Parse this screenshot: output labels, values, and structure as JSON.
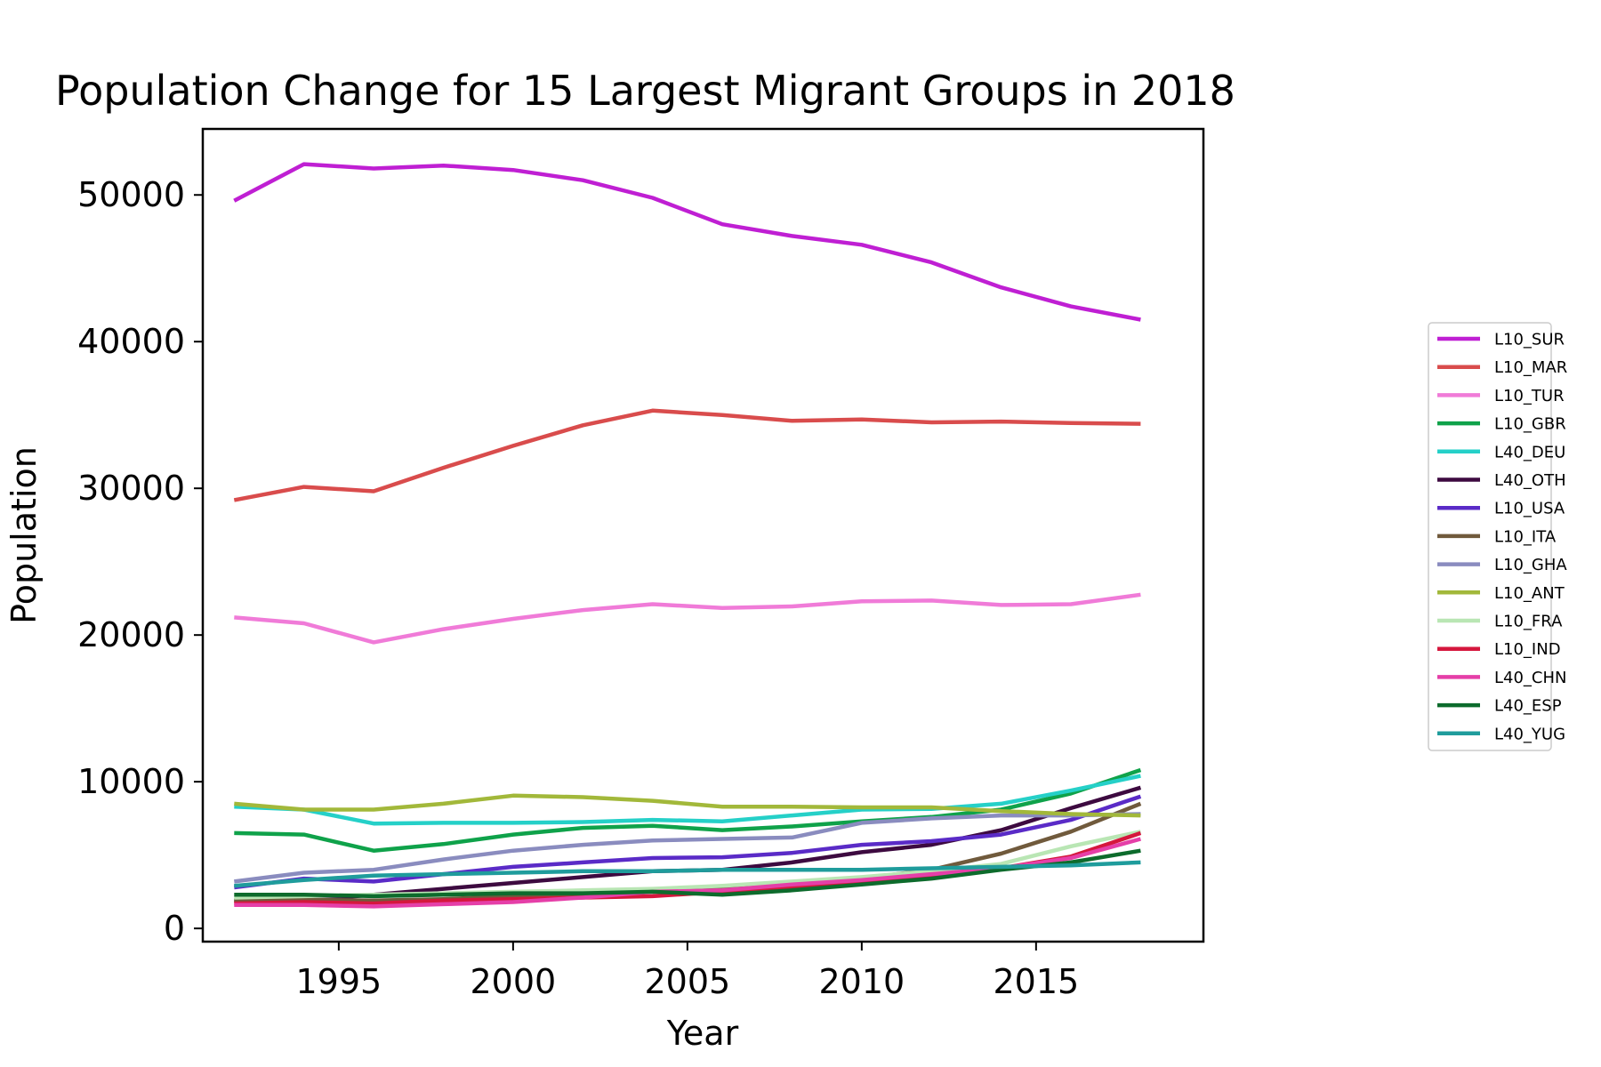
{
  "chart_data": {
    "type": "line",
    "title": "Population Change for 15 Largest Migrant Groups in 2018",
    "xlabel": "Year",
    "ylabel": "Population",
    "xlim": [
      1991.1,
      2019.8
    ],
    "ylim": [
      -900,
      54500
    ],
    "x_ticks": [
      1995,
      2000,
      2005,
      2010,
      2015
    ],
    "y_ticks": [
      0,
      10000,
      20000,
      30000,
      40000,
      50000
    ],
    "grid": false,
    "legend_position": "right",
    "x": [
      1992,
      1994,
      1996,
      1998,
      2000,
      2002,
      2004,
      2006,
      2008,
      2010,
      2012,
      2014,
      2016,
      2018
    ],
    "series": [
      {
        "name": "L10_SUR",
        "color": "#bf1fd3",
        "values": [
          49600,
          52100,
          51800,
          52000,
          51700,
          51000,
          49800,
          48000,
          47200,
          46600,
          45400,
          43700,
          42400,
          41500
        ]
      },
      {
        "name": "L10_MAR",
        "color": "#d94c4c",
        "values": [
          29200,
          30100,
          29800,
          31400,
          32900,
          34300,
          35300,
          35000,
          34600,
          34700,
          34500,
          34550,
          34450,
          34400
        ]
      },
      {
        "name": "L10_TUR",
        "color": "#f07bd8",
        "values": [
          21200,
          20800,
          19500,
          20400,
          21100,
          21700,
          22100,
          21850,
          21950,
          22300,
          22350,
          22050,
          22100,
          22750
        ]
      },
      {
        "name": "L10_GBR",
        "color": "#0fa24a",
        "values": [
          6500,
          6400,
          5300,
          5750,
          6400,
          6850,
          7000,
          6700,
          6950,
          7300,
          7600,
          8100,
          9200,
          10800
        ]
      },
      {
        "name": "L40_DEU",
        "color": "#25d0c8",
        "values": [
          8300,
          8100,
          7150,
          7200,
          7200,
          7250,
          7400,
          7300,
          7700,
          8100,
          8150,
          8500,
          9400,
          10400
        ]
      },
      {
        "name": "L40_OTH",
        "color": "#3d0a40",
        "values": [
          1900,
          1900,
          2300,
          2700,
          3100,
          3500,
          3900,
          4000,
          4500,
          5200,
          5700,
          6700,
          8200,
          9600
        ]
      },
      {
        "name": "L10_USA",
        "color": "#5a2bc7",
        "values": [
          2800,
          3400,
          3200,
          3700,
          4200,
          4500,
          4800,
          4850,
          5150,
          5700,
          5950,
          6400,
          7400,
          9000
        ]
      },
      {
        "name": "L10_ITA",
        "color": "#705a3c",
        "values": [
          1900,
          1950,
          1900,
          2000,
          2200,
          2300,
          2500,
          2700,
          3000,
          3400,
          4000,
          5100,
          6600,
          8500
        ]
      },
      {
        "name": "L10_GHA",
        "color": "#8a8cbf",
        "values": [
          3200,
          3800,
          4000,
          4700,
          5300,
          5700,
          6000,
          6100,
          6200,
          7200,
          7500,
          7700,
          7700,
          7800
        ]
      },
      {
        "name": "L10_ANT",
        "color": "#a2b83a",
        "values": [
          8500,
          8100,
          8100,
          8500,
          9050,
          8950,
          8700,
          8300,
          8300,
          8250,
          8250,
          8000,
          7800,
          7700
        ]
      },
      {
        "name": "L10_FRA",
        "color": "#b9e6b4",
        "values": [
          2100,
          2200,
          2300,
          2400,
          2500,
          2600,
          2700,
          2900,
          3200,
          3500,
          3900,
          4400,
          5600,
          6600
        ]
      },
      {
        "name": "L10_IND",
        "color": "#d5173d",
        "values": [
          1700,
          1800,
          1700,
          1900,
          2000,
          2100,
          2200,
          2500,
          2800,
          3100,
          3600,
          4100,
          4900,
          6500
        ]
      },
      {
        "name": "L40_CHN",
        "color": "#e53fa8",
        "values": [
          1600,
          1600,
          1500,
          1650,
          1800,
          2100,
          2500,
          2600,
          3000,
          3300,
          3700,
          4100,
          4800,
          6100
        ]
      },
      {
        "name": "L40_ESP",
        "color": "#0d6b2c",
        "values": [
          2300,
          2300,
          2200,
          2300,
          2400,
          2400,
          2500,
          2300,
          2600,
          3000,
          3400,
          4000,
          4500,
          5300
        ]
      },
      {
        "name": "L40_YUG",
        "color": "#1f9c9c",
        "values": [
          2900,
          3300,
          3600,
          3700,
          3800,
          3900,
          3900,
          4000,
          4000,
          4000,
          4100,
          4200,
          4300,
          4500
        ]
      }
    ]
  }
}
